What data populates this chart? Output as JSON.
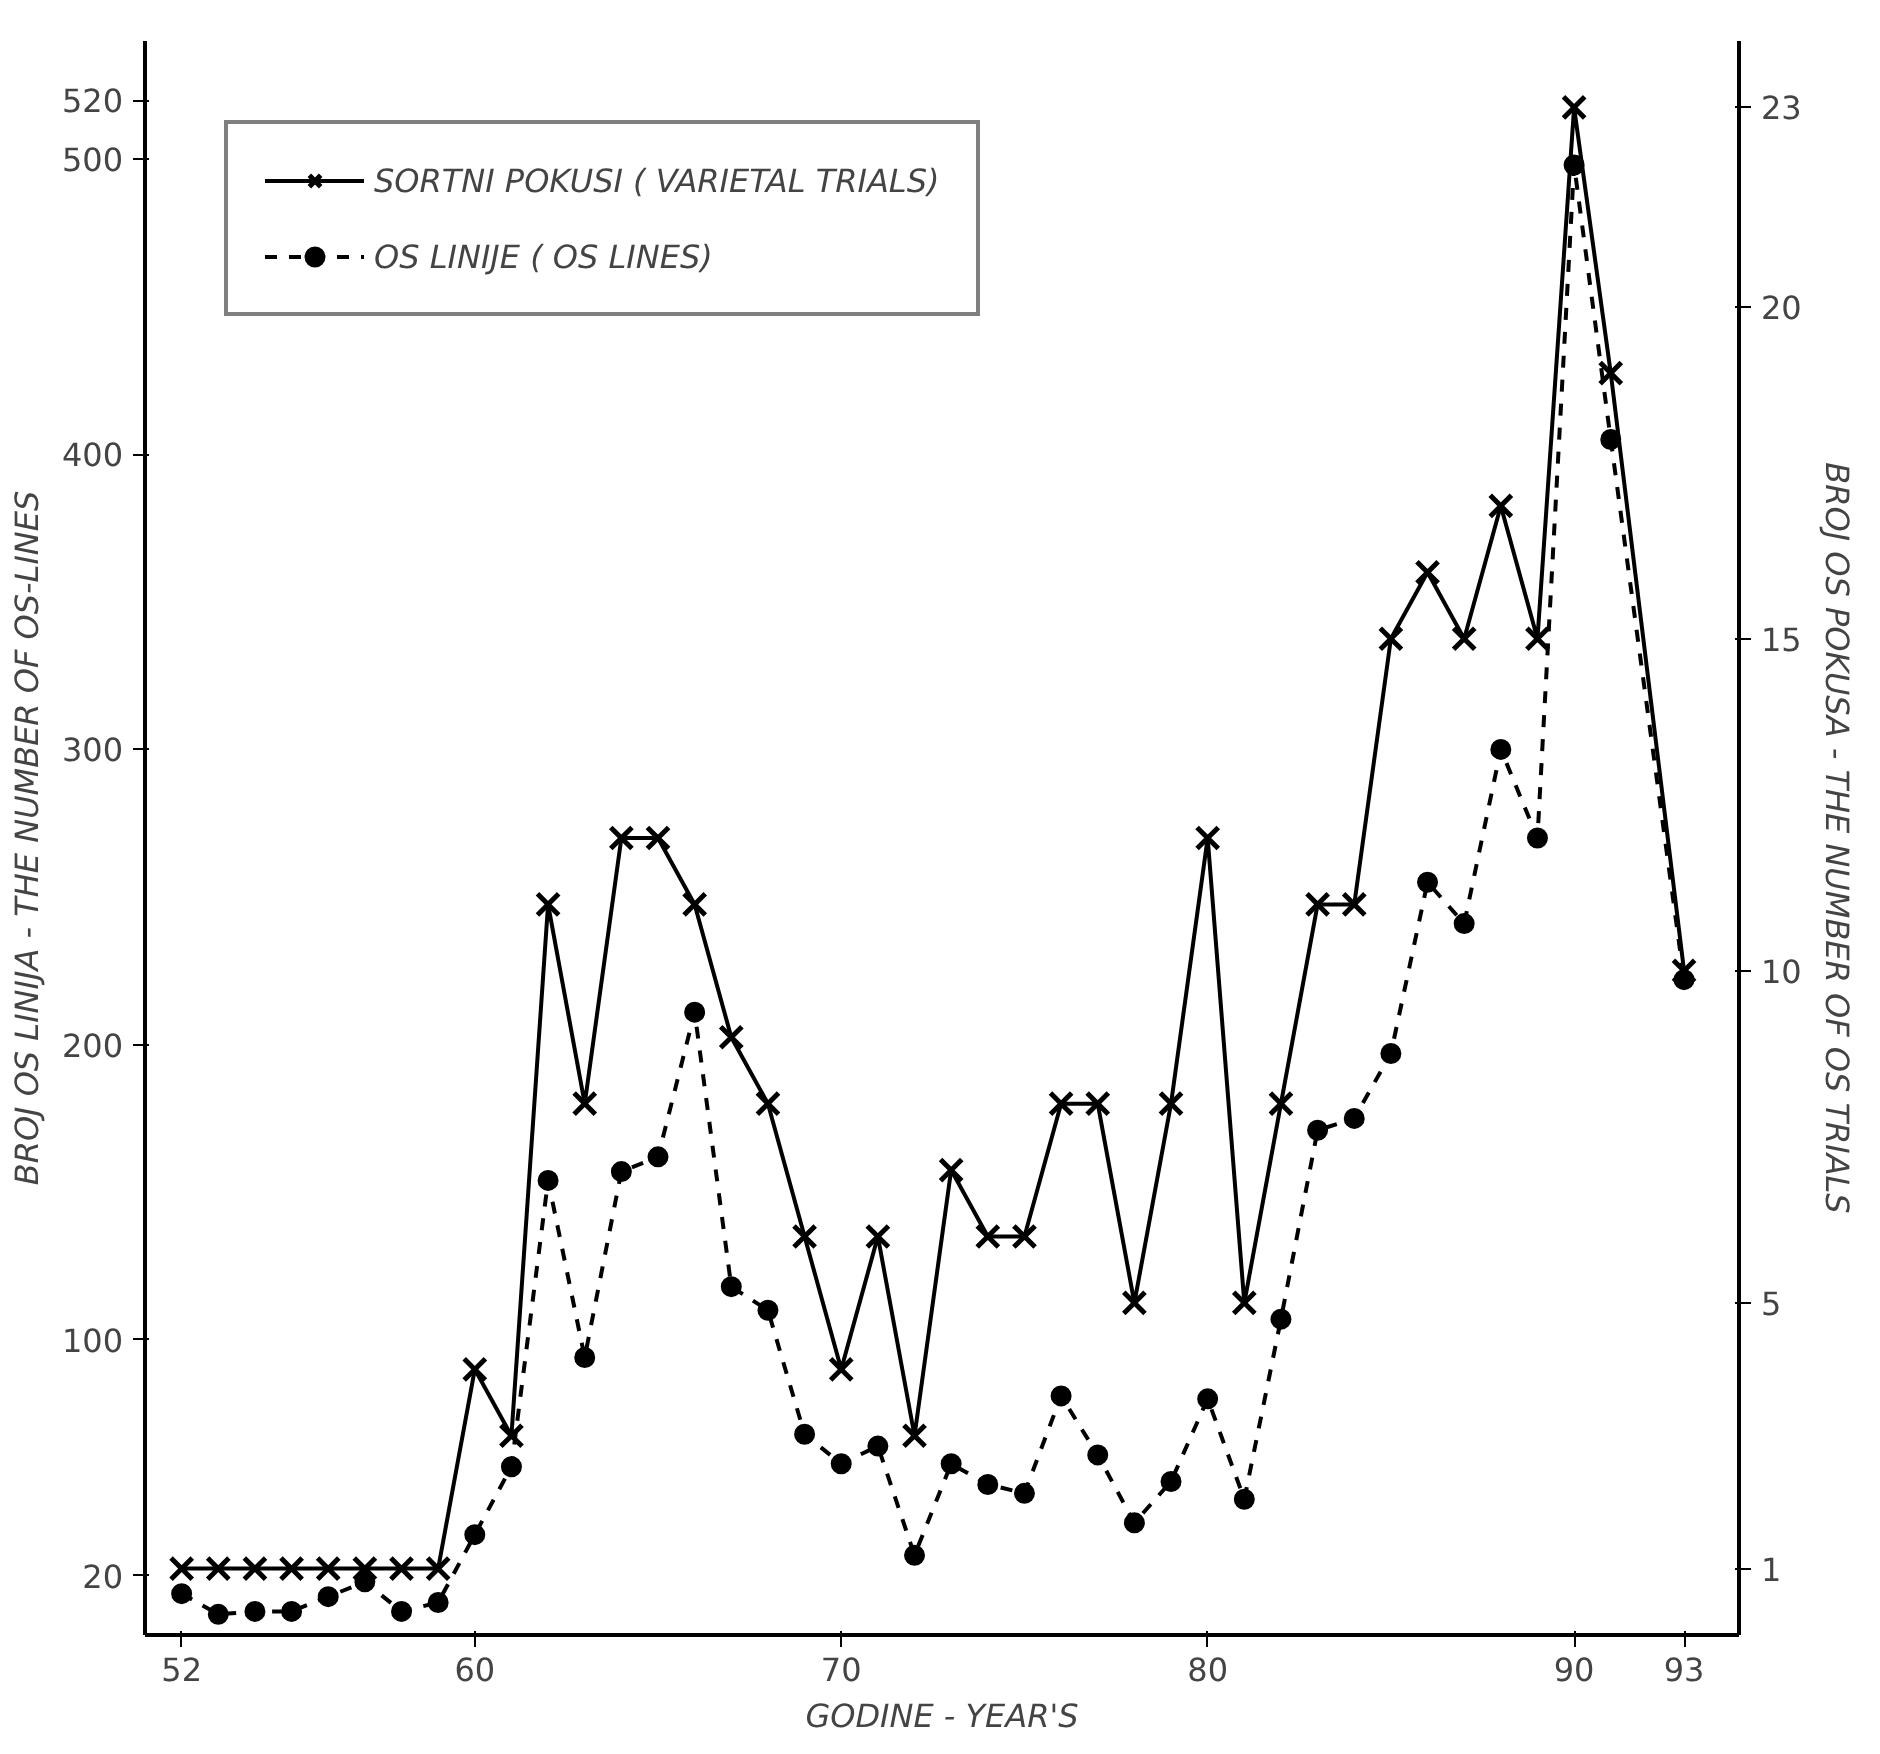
{
  "chart_data": {
    "type": "line",
    "xlabel": "GODINE - YEAR'S",
    "ylabel": "BROJ OS LINIJA - THE NUMBER OF OS-LINES",
    "y2label": "BROJ OS POKUSA - THE NUMBER OF OS TRIALS",
    "x": [
      52,
      53,
      54,
      55,
      56,
      57,
      58,
      59,
      60,
      61,
      62,
      63,
      64,
      65,
      66,
      67,
      68,
      69,
      70,
      71,
      72,
      73,
      74,
      75,
      76,
      77,
      78,
      79,
      80,
      81,
      82,
      83,
      84,
      85,
      86,
      87,
      88,
      89,
      90,
      91,
      93
    ],
    "xlim": [
      51,
      94.5
    ],
    "xticks": [
      52,
      60,
      70,
      80,
      90,
      93
    ],
    "ylim": [
      0,
      540
    ],
    "yticks": [
      20,
      100,
      200,
      300,
      400,
      500,
      520
    ],
    "y2lim": [
      0,
      24
    ],
    "y2ticks": [
      1,
      5,
      10,
      15,
      20,
      23
    ],
    "series": [
      {
        "name": "SORTNI POKUSI ( VARIETAL TRIALS)",
        "color": "#000000",
        "axis": "y2",
        "marker": "cross",
        "line_style": "solid",
        "values": [
          1,
          1,
          1,
          1,
          1,
          1,
          1,
          1,
          4,
          3,
          11,
          8,
          12,
          12,
          11,
          9,
          8,
          6,
          4,
          6,
          3,
          7,
          6,
          6,
          8,
          8,
          5,
          8,
          12,
          5,
          8,
          11,
          11,
          15,
          16,
          15,
          17,
          15,
          23,
          19,
          10
        ]
      },
      {
        "name": "OS LINIJE ( OS LINES)",
        "color": "#000000",
        "marker": "circle",
        "line_style": "dashed",
        "values": [
          14,
          7,
          8,
          8,
          13,
          18,
          8,
          11,
          34,
          57,
          154,
          94,
          157,
          162,
          211,
          118,
          110,
          68,
          58,
          64,
          27,
          58,
          51,
          48,
          81,
          61,
          38,
          52,
          80,
          46,
          107,
          171,
          175,
          197,
          255,
          241,
          300,
          270,
          498,
          405,
          222
        ]
      }
    ],
    "legend": "top left",
    "grid": false
  }
}
